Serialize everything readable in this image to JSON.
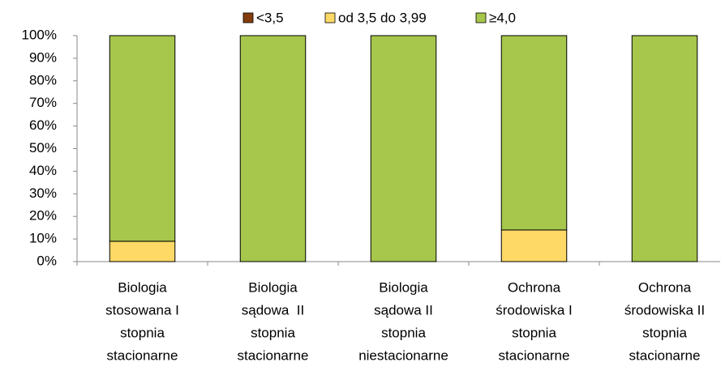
{
  "chart_data": {
    "type": "bar",
    "stacked": true,
    "categories": [
      [
        "Biologia",
        "stosowana I",
        "stopnia",
        "stacionarne"
      ],
      [
        "Biologia",
        "sądowa  II",
        "stopnia",
        "stacionarne"
      ],
      [
        "Biologia",
        "sądowa II",
        "stopnia",
        "niestacionarne"
      ],
      [
        "Ochrona",
        "środowiska I",
        "stopnia",
        "stacionarne"
      ],
      [
        "Ochrona",
        "środowiska II",
        "stopnia",
        "stacionarne"
      ]
    ],
    "series": [
      {
        "name": "<3,5",
        "color": "#843c0c",
        "values": [
          0,
          0,
          0,
          0,
          0
        ]
      },
      {
        "name": "od 3,5 do 3,99",
        "color": "#ffd966",
        "values": [
          9,
          0,
          0,
          14,
          0
        ]
      },
      {
        "name": "≥4,0",
        "color": "#a6c64c",
        "values": [
          91,
          100,
          100,
          86,
          100
        ]
      }
    ],
    "ylim": [
      0,
      100
    ],
    "yticks": [
      {
        "value": 0,
        "label": "0%"
      },
      {
        "value": 10,
        "label": "10%"
      },
      {
        "value": 20,
        "label": "20%"
      },
      {
        "value": 30,
        "label": "30%"
      },
      {
        "value": 40,
        "label": "40%"
      },
      {
        "value": 50,
        "label": "50%"
      },
      {
        "value": 60,
        "label": "60%"
      },
      {
        "value": 70,
        "label": "70%"
      },
      {
        "value": 80,
        "label": "80%"
      },
      {
        "value": 90,
        "label": "90%"
      },
      {
        "value": 100,
        "label": "100%"
      }
    ],
    "legend": "top",
    "grid": false
  }
}
